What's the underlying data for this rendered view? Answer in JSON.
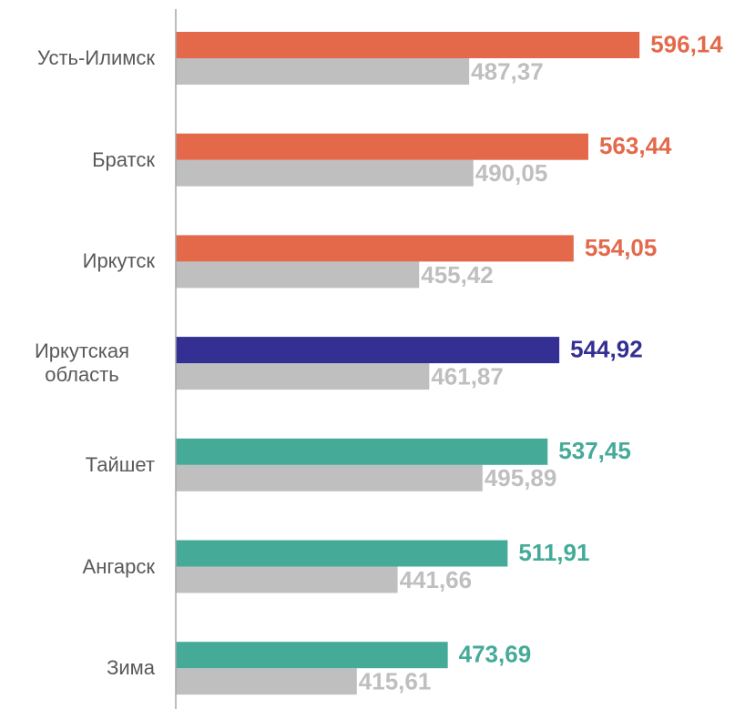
{
  "chart_data": {
    "type": "bar",
    "orientation": "horizontal",
    "categories": [
      "Усть-Илимск",
      "Братск",
      "Иркутск",
      "Иркутская область",
      "Тайшет",
      "Ангарск",
      "Зима"
    ],
    "series": [
      {
        "colors": [
          "#e4694a",
          "#e4694a",
          "#e4694a",
          "#332f93",
          "#45ab98",
          "#45ab98",
          "#45ab98"
        ],
        "values": [
          596.14,
          563.44,
          554.05,
          544.92,
          537.45,
          511.91,
          473.69
        ],
        "value_labels": [
          "596,14",
          "563,44",
          "554,05",
          "544,92",
          "537,45",
          "511,91",
          "473,69"
        ]
      },
      {
        "color": "#bfbfbf",
        "values": [
          487.37,
          490.05,
          455.42,
          461.87,
          495.89,
          441.66,
          415.61
        ],
        "value_labels": [
          "487,37",
          "490,05",
          "455,42",
          "461,87",
          "495,89",
          "441,66",
          "415,61"
        ]
      }
    ],
    "xlim": [
      300,
      660
    ]
  }
}
